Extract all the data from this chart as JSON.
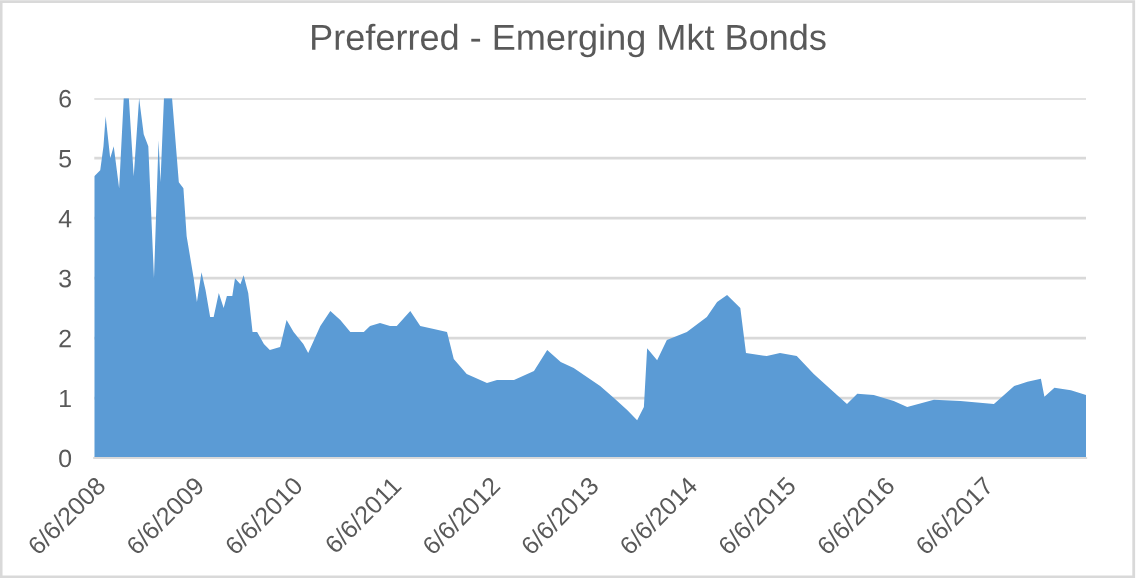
{
  "chart_data": {
    "type": "area",
    "title": "Preferred - Emerging Mkt Bonds",
    "x": [
      "2008-06-06",
      "2008-06-28",
      "2008-07-10",
      "2008-07-18",
      "2008-08-04",
      "2008-08-17",
      "2008-09-06",
      "2008-09-23",
      "2008-10-12",
      "2008-10-30",
      "2008-11-19",
      "2008-12-06",
      "2008-12-23",
      "2009-01-13",
      "2009-01-30",
      "2009-02-06",
      "2009-02-19",
      "2009-03-21",
      "2009-04-15",
      "2009-05-02",
      "2009-05-14",
      "2009-06-09",
      "2009-06-21",
      "2009-07-08",
      "2009-07-23",
      "2009-08-09",
      "2009-08-22",
      "2009-09-10",
      "2009-09-28",
      "2009-10-10",
      "2009-10-30",
      "2009-11-09",
      "2009-11-29",
      "2009-12-11",
      "2009-12-28",
      "2010-01-13",
      "2010-01-30",
      "2010-02-24",
      "2010-03-18",
      "2010-04-25",
      "2010-05-19",
      "2010-06-14",
      "2010-07-20",
      "2010-08-07",
      "2010-08-27",
      "2010-09-21",
      "2010-10-28",
      "2010-12-04",
      "2011-01-10",
      "2011-03-01",
      "2011-03-24",
      "2011-04-30",
      "2011-06-06",
      "2011-07-01",
      "2011-08-20",
      "2011-09-26",
      "2011-11-15",
      "2012-01-03",
      "2012-01-28",
      "2012-03-16",
      "2012-05-30",
      "2012-07-06",
      "2012-09-07",
      "2012-11-20",
      "2013-01-08",
      "2013-02-27",
      "2013-04-16",
      "2013-06-04",
      "2013-07-23",
      "2013-09-12",
      "2013-10-31",
      "2013-12-07",
      "2014-01-01",
      "2014-01-13",
      "2014-02-19",
      "2014-03-27",
      "2014-06-09",
      "2014-08-22",
      "2014-09-29",
      "2014-11-05",
      "2014-12-24",
      "2015-01-14",
      "2015-04-01",
      "2015-05-20",
      "2015-07-21",
      "2015-09-22",
      "2015-11-10",
      "2016-01-23",
      "2016-03-01",
      "2016-05-01",
      "2016-07-14",
      "2016-09-02",
      "2016-12-10",
      "2017-03-18",
      "2017-07-20",
      "2017-10-03",
      "2017-11-21",
      "2018-01-10",
      "2018-01-23",
      "2018-03-01",
      "2018-05-01",
      "2018-06-26"
    ],
    "series": [
      {
        "color": "#5b9bd5",
        "values": [
          4.7,
          4.8,
          5.2,
          5.7,
          5.0,
          5.2,
          4.5,
          6,
          6,
          4.7,
          6,
          5.4,
          5.2,
          3.0,
          5.3,
          4.6,
          6,
          6,
          4.6,
          4.5,
          3.7,
          3.0,
          2.6,
          3.1,
          2.8,
          2.35,
          2.35,
          2.75,
          2.5,
          2.7,
          2.7,
          3.0,
          2.9,
          3.05,
          2.75,
          2.1,
          2.1,
          1.9,
          1.8,
          1.85,
          2.3,
          2.1,
          1.9,
          1.75,
          1.95,
          2.2,
          2.45,
          2.3,
          2.1,
          2.1,
          2.2,
          2.25,
          2.2,
          2.2,
          2.45,
          2.2,
          2.15,
          2.1,
          1.65,
          1.4,
          1.25,
          1.3,
          1.3,
          1.45,
          1.8,
          1.6,
          1.5,
          1.35,
          1.2,
          1.0,
          0.8,
          0.63,
          0.85,
          1.83,
          1.63,
          1.97,
          2.1,
          2.35,
          2.6,
          2.72,
          2.5,
          1.75,
          1.7,
          1.75,
          1.7,
          1.4,
          1.2,
          0.9,
          1.07,
          1.05,
          0.95,
          0.85,
          0.97,
          0.95,
          0.9,
          1.2,
          1.27,
          1.32,
          1.02,
          1.17,
          1.13,
          1.05
        ]
      }
    ],
    "xlim": [
      "2008-06-06",
      "2018-06-26"
    ],
    "xticks": [
      {
        "value": "2008-06-06",
        "label": "6/6/2008"
      },
      {
        "value": "2009-06-06",
        "label": "6/6/2009"
      },
      {
        "value": "2010-06-06",
        "label": "6/6/2010"
      },
      {
        "value": "2011-06-06",
        "label": "6/6/2011"
      },
      {
        "value": "2012-06-06",
        "label": "6/6/2012"
      },
      {
        "value": "2013-06-06",
        "label": "6/6/2013"
      },
      {
        "value": "2014-06-06",
        "label": "6/6/2014"
      },
      {
        "value": "2015-06-06",
        "label": "6/6/2015"
      },
      {
        "value": "2016-06-06",
        "label": "6/6/2016"
      },
      {
        "value": "2017-06-06",
        "label": "6/6/2017"
      }
    ],
    "ylim": [
      0,
      6
    ],
    "yticks": [
      0,
      1,
      2,
      3,
      4,
      5,
      6
    ],
    "grid": "y"
  }
}
